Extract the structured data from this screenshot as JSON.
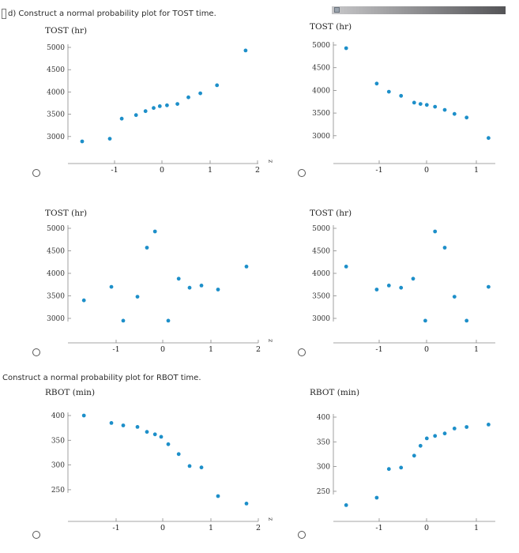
{
  "header": {
    "question_d": "d) Construct a normal probability plot for TOST time.",
    "question_e": "Construct a normal probability plot for RBOT time."
  },
  "colors": {
    "point": "#1d8fc9",
    "axis": "#888888"
  },
  "chart_data": [
    {
      "type": "scatter",
      "name_ref": "tost-option-a",
      "ylabel": "TOST (hr)",
      "xlabel": "z",
      "yticks": [
        5000,
        4500,
        4000,
        3500,
        3000
      ],
      "xticks": [
        "-1",
        "0",
        "1",
        "2"
      ],
      "xlim": [
        -1.95,
        2.2
      ],
      "ylim": [
        2700,
        5100
      ],
      "points": [
        [
          -1.68,
          2890
        ],
        [
          -1.1,
          2950
        ],
        [
          -0.85,
          3400
        ],
        [
          -0.55,
          3480
        ],
        [
          -0.35,
          3570
        ],
        [
          -0.18,
          3640
        ],
        [
          -0.05,
          3680
        ],
        [
          0.1,
          3700
        ],
        [
          0.32,
          3730
        ],
        [
          0.55,
          3880
        ],
        [
          0.8,
          3970
        ],
        [
          1.15,
          4150
        ],
        [
          1.75,
          4930
        ]
      ]
    },
    {
      "type": "scatter",
      "name_ref": "tost-option-b",
      "ylabel": "TOST (hr)",
      "xlabel": "",
      "yticks": [
        5000,
        4500,
        4000,
        3500,
        3000
      ],
      "xticks": [
        "-1",
        "0",
        "1"
      ],
      "xlim": [
        -1.95,
        1.35
      ],
      "ylim": [
        2700,
        5100
      ],
      "points": [
        [
          -1.68,
          4930
        ],
        [
          -1.05,
          4150
        ],
        [
          -0.8,
          3970
        ],
        [
          -0.55,
          3880
        ],
        [
          -0.28,
          3730
        ],
        [
          -0.15,
          3700
        ],
        [
          -0.02,
          3680
        ],
        [
          0.15,
          3640
        ],
        [
          0.35,
          3570
        ],
        [
          0.55,
          3480
        ],
        [
          0.8,
          3400
        ],
        [
          1.25,
          2950
        ]
      ]
    },
    {
      "type": "scatter",
      "name_ref": "tost-option-c",
      "ylabel": "TOST (hr)",
      "xlabel": "z",
      "yticks": [
        5000,
        4500,
        4000,
        3500,
        3000
      ],
      "xticks": [
        "-1",
        "0",
        "1",
        "2"
      ],
      "xlim": [
        -1.95,
        2.2
      ],
      "ylim": [
        2700,
        5100
      ],
      "points": [
        [
          -1.68,
          3400
        ],
        [
          -1.1,
          3700
        ],
        [
          -0.85,
          2950
        ],
        [
          -0.55,
          3480
        ],
        [
          -0.35,
          4570
        ],
        [
          -0.18,
          4930
        ],
        [
          0.1,
          2950
        ],
        [
          0.32,
          3880
        ],
        [
          0.55,
          3680
        ],
        [
          0.8,
          3730
        ],
        [
          1.15,
          3640
        ],
        [
          1.75,
          4150
        ]
      ]
    },
    {
      "type": "scatter",
      "name_ref": "tost-option-d",
      "ylabel": "TOST (hr)",
      "xlabel": "",
      "yticks": [
        5000,
        4500,
        4000,
        3500,
        3000
      ],
      "xticks": [
        "-1",
        "0",
        "1"
      ],
      "xlim": [
        -1.95,
        1.35
      ],
      "ylim": [
        2700,
        5100
      ],
      "points": [
        [
          -1.68,
          4150
        ],
        [
          -1.05,
          3640
        ],
        [
          -0.8,
          3730
        ],
        [
          -0.55,
          3680
        ],
        [
          -0.3,
          3880
        ],
        [
          -0.05,
          2950
        ],
        [
          0.15,
          4930
        ],
        [
          0.35,
          4570
        ],
        [
          0.55,
          3480
        ],
        [
          0.8,
          2950
        ],
        [
          1.25,
          3700
        ]
      ]
    },
    {
      "type": "scatter",
      "name_ref": "rbot-option-a",
      "ylabel": "RBOT (min)",
      "xlabel": "z",
      "yticks": [
        400,
        350,
        300,
        250
      ],
      "xticks": [
        "-1",
        "0",
        "1",
        "2"
      ],
      "xlim": [
        -1.95,
        2.2
      ],
      "ylim": [
        205,
        415
      ],
      "points": [
        [
          -1.68,
          400
        ],
        [
          -1.1,
          385
        ],
        [
          -0.85,
          380
        ],
        [
          -0.55,
          377
        ],
        [
          -0.35,
          367
        ],
        [
          -0.18,
          362
        ],
        [
          -0.05,
          357
        ],
        [
          0.1,
          342
        ],
        [
          0.32,
          322
        ],
        [
          0.55,
          298
        ],
        [
          0.8,
          295
        ],
        [
          1.15,
          237
        ],
        [
          1.75,
          222
        ]
      ]
    },
    {
      "type": "scatter",
      "name_ref": "rbot-option-b",
      "ylabel": "RBOT (min)",
      "xlabel": "",
      "yticks": [
        400,
        350,
        300,
        250
      ],
      "xticks": [
        "-1",
        "0",
        "1"
      ],
      "xlim": [
        -1.95,
        1.35
      ],
      "ylim": [
        205,
        415
      ],
      "points": [
        [
          -1.68,
          222
        ],
        [
          -1.05,
          237
        ],
        [
          -0.8,
          295
        ],
        [
          -0.55,
          298
        ],
        [
          -0.28,
          322
        ],
        [
          -0.15,
          342
        ],
        [
          -0.02,
          357
        ],
        [
          0.15,
          362
        ],
        [
          0.35,
          367
        ],
        [
          0.55,
          377
        ],
        [
          0.8,
          380
        ],
        [
          1.25,
          385
        ]
      ]
    }
  ]
}
